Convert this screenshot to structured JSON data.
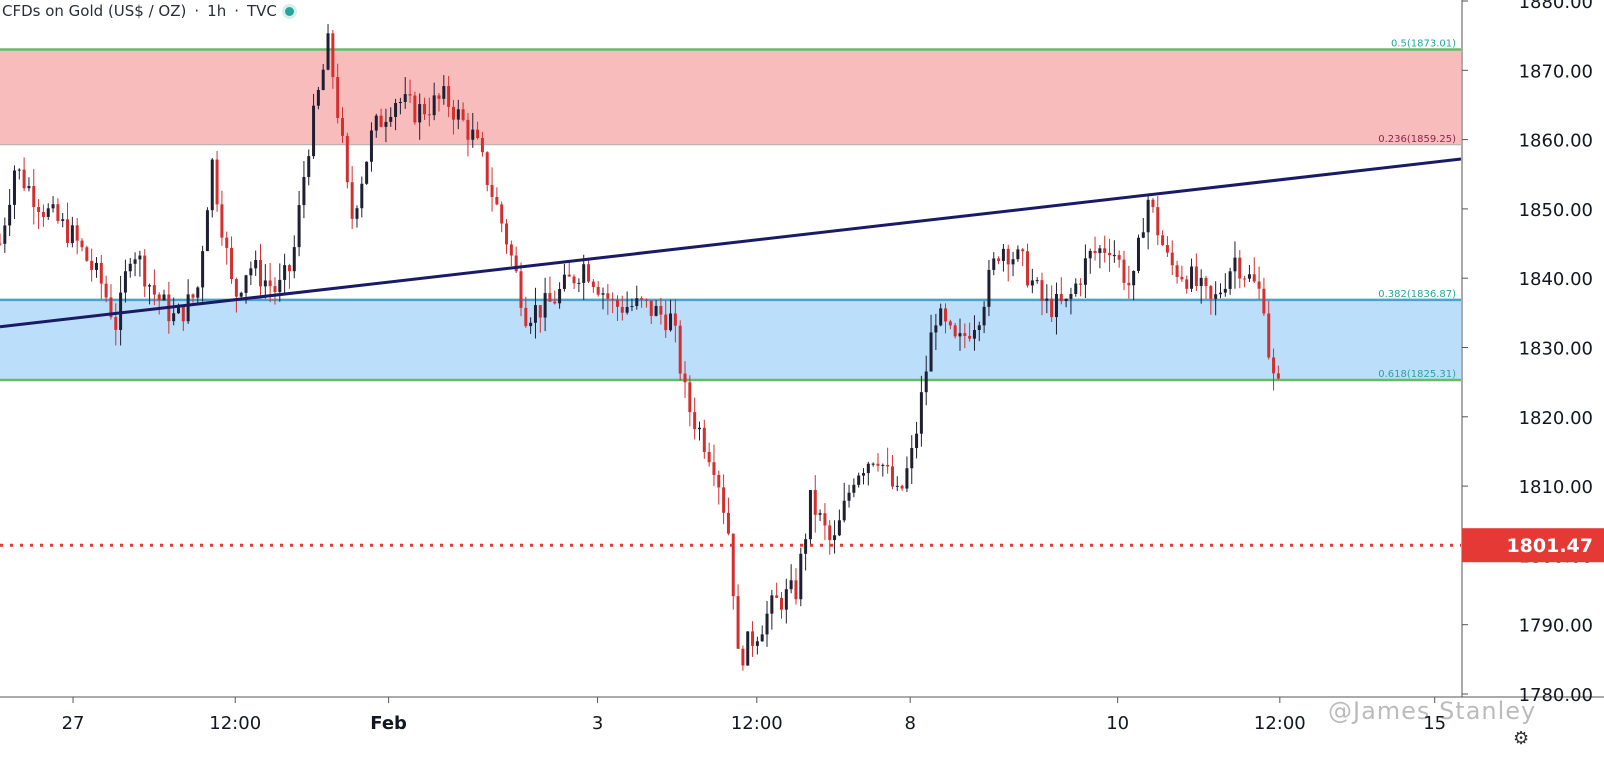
{
  "header": {
    "symbol": "CFDs on Gold (US$ / OZ)",
    "interval": "1h",
    "source": "TVC",
    "separator": "·"
  },
  "watermark": "@James Stanley",
  "colors": {
    "resistance_zone": "#f8bcbc",
    "support_zone": "#bbdefb",
    "fib_line_green": "#66bb6a",
    "fib_line_blue": "#4ba3c7",
    "trendline": "#1a1a66",
    "price_line": "#e53935",
    "bull_candle": "#1f1f33",
    "bear_candle": "#d32f2f",
    "fib_label_red": "#8e244d",
    "fib_label_teal": "#26a69a"
  },
  "chart_data": {
    "type": "candlestick",
    "title": "CFDs on Gold (US$ / OZ) · 1h · TVC",
    "ylim": [
      1777,
      1881
    ],
    "y_ticks": [
      "1780.00",
      "1790.00",
      "1800.00",
      "1810.00",
      "1820.00",
      "1830.00",
      "1840.00",
      "1850.00",
      "1860.00",
      "1870.00",
      "1880.00"
    ],
    "x_ticks": [
      {
        "label": "27",
        "pos": 0.05
      },
      {
        "label": "12:00",
        "pos": 0.161
      },
      {
        "label": "Feb",
        "pos": 0.266
      },
      {
        "label": "3",
        "pos": 0.409
      },
      {
        "label": "12:00",
        "pos": 0.518
      },
      {
        "label": "8",
        "pos": 0.623
      },
      {
        "label": "10",
        "pos": 0.765
      },
      {
        "label": "12:00",
        "pos": 0.876
      },
      {
        "label": "15",
        "pos": 0.982
      }
    ],
    "current_price": 1801.47,
    "current_price_label": "1801.47",
    "fib_levels": [
      {
        "label": "0.5(1873.01)",
        "value": 1873.01,
        "color": "#66bb6a",
        "text_color": "#26a69a"
      },
      {
        "label": "0.236(1859.25)",
        "value": 1859.25,
        "color": "#b0b0b0",
        "text_color": "#8e244d"
      },
      {
        "label": "0.382(1836.87)",
        "value": 1836.87,
        "color": "#4ba3c7",
        "text_color": "#26a69a"
      },
      {
        "label": "0.618(1825.31)",
        "value": 1825.31,
        "color": "#66bb6a",
        "text_color": "#26a69a"
      }
    ],
    "zones": [
      {
        "name": "resistance",
        "from": 1859.25,
        "to": 1873.01
      },
      {
        "name": "support",
        "from": 1825.31,
        "to": 1836.87
      }
    ],
    "trendline": {
      "start": {
        "pos": 0.0,
        "value": 1833.0
      },
      "end": {
        "pos": 1.0,
        "value": 1857.2
      }
    },
    "close_path": [
      [
        0.0,
        1845
      ],
      [
        0.01,
        1856
      ],
      [
        0.03,
        1850
      ],
      [
        0.05,
        1846
      ],
      [
        0.07,
        1839
      ],
      [
        0.08,
        1833
      ],
      [
        0.09,
        1845
      ],
      [
        0.105,
        1838
      ],
      [
        0.12,
        1834
      ],
      [
        0.135,
        1838
      ],
      [
        0.145,
        1857
      ],
      [
        0.16,
        1837
      ],
      [
        0.17,
        1842
      ],
      [
        0.19,
        1838
      ],
      [
        0.2,
        1842
      ],
      [
        0.21,
        1858
      ],
      [
        0.225,
        1874
      ],
      [
        0.235,
        1858
      ],
      [
        0.24,
        1848
      ],
      [
        0.255,
        1861
      ],
      [
        0.27,
        1866
      ],
      [
        0.285,
        1864
      ],
      [
        0.305,
        1866
      ],
      [
        0.325,
        1860
      ],
      [
        0.345,
        1847
      ],
      [
        0.36,
        1835
      ],
      [
        0.375,
        1836
      ],
      [
        0.4,
        1842
      ],
      [
        0.42,
        1836
      ],
      [
        0.44,
        1836
      ],
      [
        0.46,
        1834
      ],
      [
        0.47,
        1822
      ],
      [
        0.49,
        1813
      ],
      [
        0.5,
        1802
      ],
      [
        0.505,
        1785
      ],
      [
        0.515,
        1788
      ],
      [
        0.53,
        1793
      ],
      [
        0.545,
        1795
      ],
      [
        0.555,
        1808
      ],
      [
        0.57,
        1801
      ],
      [
        0.585,
        1812
      ],
      [
        0.6,
        1815
      ],
      [
        0.615,
        1808
      ],
      [
        0.625,
        1815
      ],
      [
        0.64,
        1835
      ],
      [
        0.655,
        1830
      ],
      [
        0.67,
        1835
      ],
      [
        0.685,
        1845
      ],
      [
        0.7,
        1842
      ],
      [
        0.715,
        1836
      ],
      [
        0.73,
        1836
      ],
      [
        0.745,
        1843
      ],
      [
        0.76,
        1845
      ],
      [
        0.775,
        1838
      ],
      [
        0.785,
        1852
      ],
      [
        0.8,
        1842
      ],
      [
        0.815,
        1840
      ],
      [
        0.83,
        1836
      ],
      [
        0.845,
        1843
      ],
      [
        0.855,
        1840
      ],
      [
        0.865,
        1837
      ],
      [
        0.87,
        1826
      ],
      [
        0.875,
        1824
      ]
    ]
  }
}
